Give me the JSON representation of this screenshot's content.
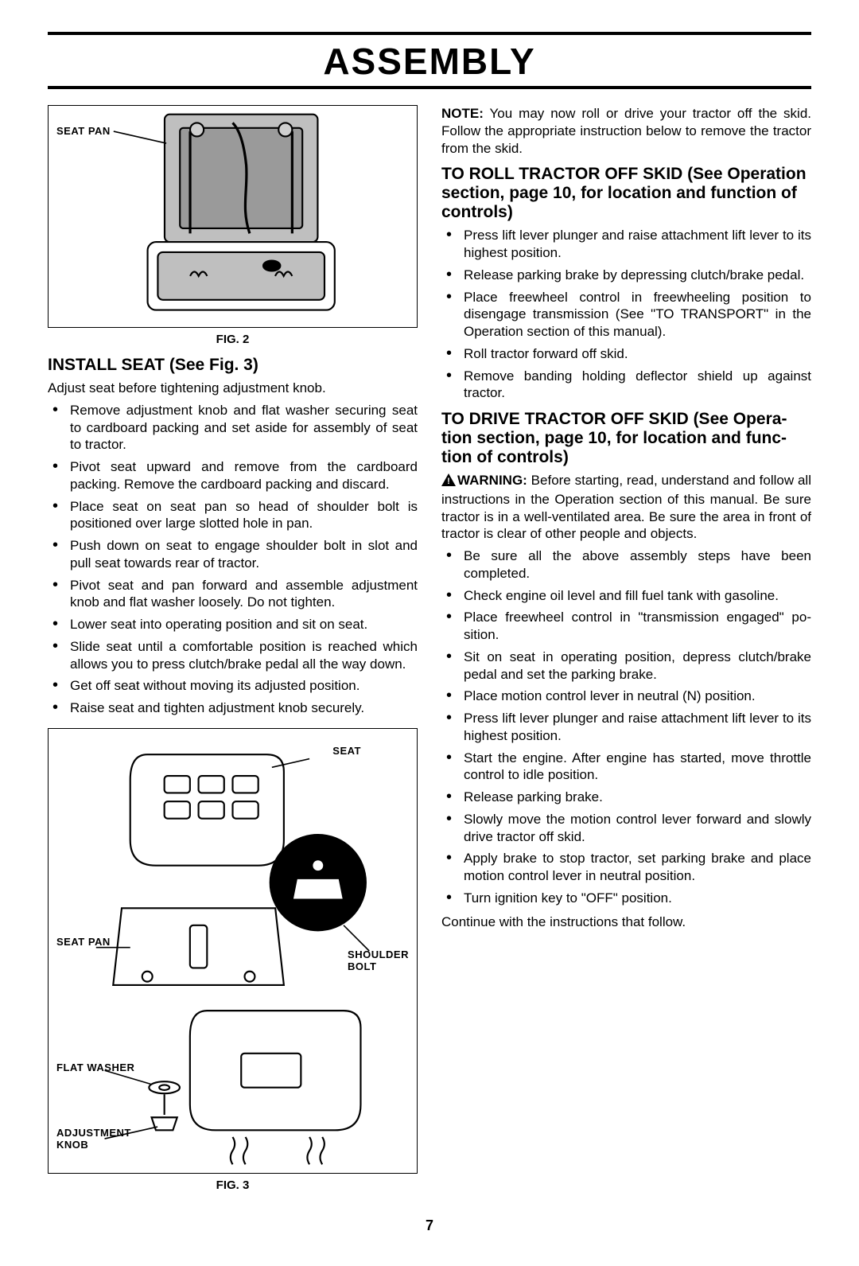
{
  "page_title": "ASSEMBLY",
  "page_number": "7",
  "fig2": {
    "caption": "FIG. 2",
    "labels": {
      "seat_pan": "SEAT PAN"
    },
    "svg": {
      "stroke": "#000000",
      "frame_fill": "#ffffff",
      "pan_fill": "#c0c0c0",
      "inner_fill": "#9a9a9a"
    }
  },
  "fig3": {
    "caption": "FIG. 3",
    "labels": {
      "seat": "SEAT",
      "seat_pan": "SEAT PAN",
      "shoulder_bolt": "SHOULDER\nBOLT",
      "flat_washer": "FLAT  WASHER",
      "adjustment_knob": "ADJUSTMENT\nKNOB"
    },
    "svg": {
      "stroke": "#000000",
      "fill": "#ffffff",
      "accent": "#000000"
    }
  },
  "left": {
    "install_seat_heading": "INSTALL SEAT (See Fig. 3)",
    "install_seat_intro": "Adjust seat before tightening adjustment knob.",
    "install_seat_items": [
      "Remove adjustment knob and flat washer securing seat to cardboard packing and set aside for assembly of seat to tractor.",
      "Pivot seat upward and remove from the cardboard packing. Remove the cardboard packing and discard.",
      "Place seat on seat pan so head of shoulder bolt is positioned over large slotted hole in pan.",
      "Push down on seat to engage shoulder bolt in slot and pull seat towards rear of tractor.",
      "Pivot seat and pan forward and assemble adjustment knob and flat washer loosely. Do not tighten.",
      "Lower seat into operating position and sit on seat.",
      "Slide seat until a comfortable position is reached which allows you to press clutch/brake pedal all the way down.",
      "Get off seat without moving its adjusted position.",
      "Raise seat and tighten adjustment knob securely."
    ]
  },
  "right": {
    "note_label": "NOTE:",
    "note_text": " You may now roll or drive your tractor off the skid. Follow the appropriate instruction below to remove the tractor from the skid.",
    "roll_heading": "TO ROLL TRACTOR OFF SKID (See Operation section, page 10, for location and function of controls)",
    "roll_items": [
      "Press lift lever plunger and raise attachment lift lever to its highest position.",
      "Release parking brake by depressing clutch/brake pedal.",
      "Place freewheel control in freewheeling position to disengage transmission (See \"TO TRANSPORT\" in the Operation section of this manual).",
      "Roll tractor forward off skid.",
      "Remove banding holding deflector shield up against tractor."
    ],
    "drive_heading": "TO DRIVE TRACTOR OFF SKID (See Opera­tion section, page 10, for location and func­tion of controls)",
    "warn_label": "WARNING:",
    "warn_text": " Before starting, read, understand and follow all instructions in the Operation section of this manual. Be sure tractor is in a well-ventilated area. Be sure the area in front of tractor is clear of other people and objects.",
    "drive_items": [
      "Be sure all the above assembly steps have been completed.",
      "Check engine oil level and fill fuel tank with gasoline.",
      "Place freewheel control in \"transmission engaged\" po­sition.",
      "Sit on seat in operating position, depress clutch/brake pedal and set the parking brake.",
      "Place motion control lever in neutral (N) position.",
      "Press lift lever plunger and raise attachment lift lever to its highest position.",
      "Start the engine. After engine has started, move throttle control to idle position.",
      "Release parking brake.",
      "Slowly move the motion control lever forward and slowly drive tractor off skid.",
      "Apply brake to stop tractor, set parking brake and place motion control lever in neutral position.",
      "Turn ignition key to \"OFF\" position."
    ],
    "continue_text": "Continue with the instructions that follow."
  }
}
